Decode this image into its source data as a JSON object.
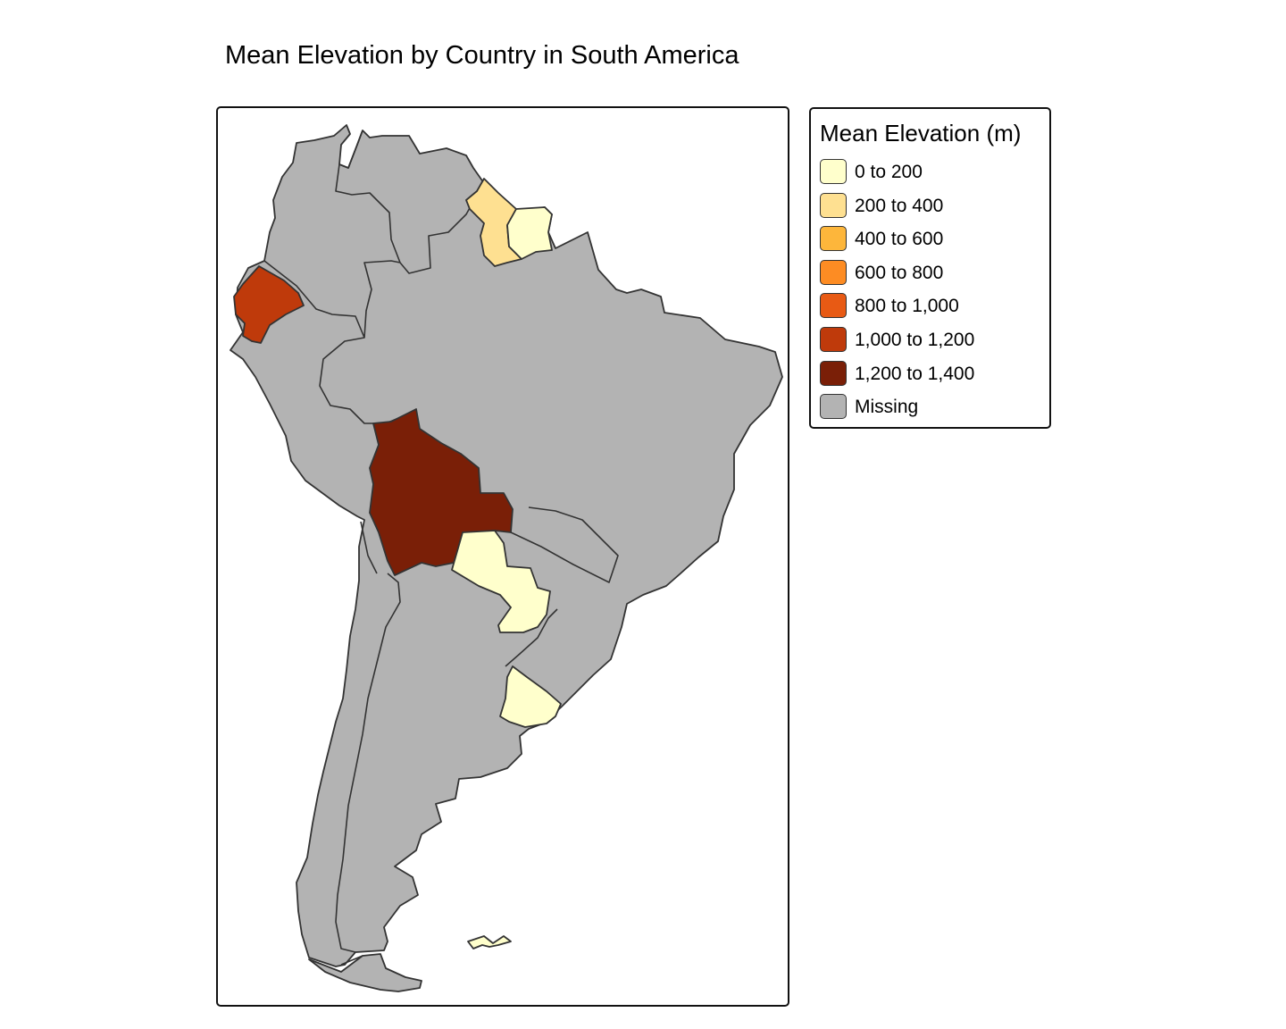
{
  "map": {
    "title": "Mean Elevation by Country in South America",
    "legend": {
      "title": "Mean Elevation (m)",
      "items": [
        {
          "label": "0 to 200",
          "color": "#FFFFCC"
        },
        {
          "label": "200 to 400",
          "color": "#FEE091"
        },
        {
          "label": "400 to 600",
          "color": "#FDB63B"
        },
        {
          "label": "600 to 800",
          "color": "#FD8C23"
        },
        {
          "label": "800 to 1,000",
          "color": "#E85A14"
        },
        {
          "label": "1,000 to 1,200",
          "color": "#BF3A0B"
        },
        {
          "label": "1,200 to 1,400",
          "color": "#7A1F07"
        },
        {
          "label": "Missing",
          "color": "#B3B3B3"
        }
      ]
    },
    "regions": [
      {
        "name": "Bolivia",
        "class": "1,200 to 1,400"
      },
      {
        "name": "Ecuador",
        "class": "1,000 to 1,200"
      },
      {
        "name": "Guyana",
        "class": "200 to 400"
      },
      {
        "name": "Suriname",
        "class": "0 to 200"
      },
      {
        "name": "Paraguay",
        "class": "0 to 200"
      },
      {
        "name": "Uruguay",
        "class": "0 to 200"
      },
      {
        "name": "Falkland Islands",
        "class": "0 to 200"
      },
      {
        "name": "Colombia",
        "class": "Missing"
      },
      {
        "name": "Venezuela",
        "class": "Missing"
      },
      {
        "name": "Brazil",
        "class": "Missing"
      },
      {
        "name": "Peru",
        "class": "Missing"
      },
      {
        "name": "Chile",
        "class": "Missing"
      },
      {
        "name": "Argentina",
        "class": "Missing"
      }
    ]
  }
}
